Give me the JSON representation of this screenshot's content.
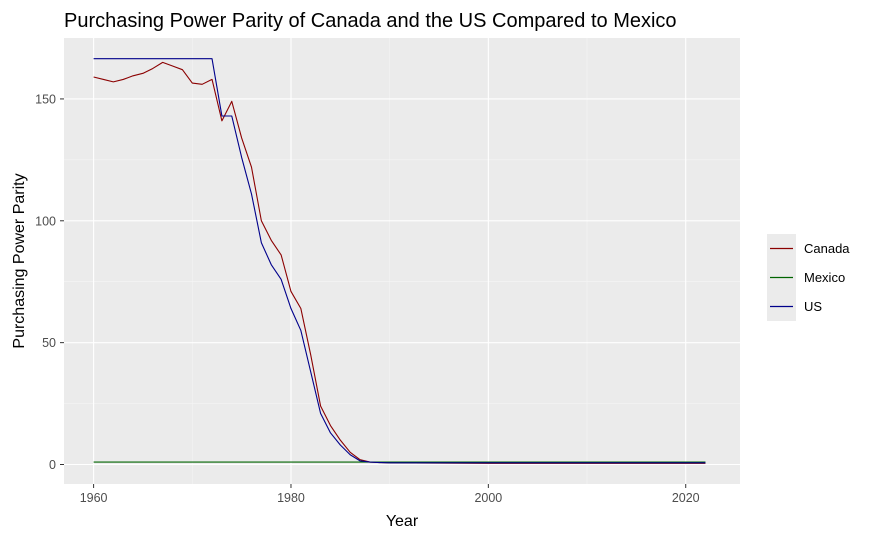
{
  "chart_data": {
    "type": "line",
    "title": "Purchasing Power Parity of Canada and the US Compared to Mexico",
    "xlabel": "Year",
    "ylabel": "Purchasing Power Parity",
    "xlim": [
      1957,
      2025.5
    ],
    "ylim": [
      -8,
      175
    ],
    "x_ticks": [
      1960,
      1980,
      2000,
      2020
    ],
    "y_ticks": [
      0,
      50,
      100,
      150
    ],
    "grid": true,
    "legend_position": "right",
    "series": [
      {
        "name": "Canada",
        "color": "#8b0000",
        "x": [
          1960,
          1961,
          1962,
          1963,
          1964,
          1965,
          1966,
          1967,
          1968,
          1969,
          1970,
          1971,
          1972,
          1973,
          1974,
          1975,
          1976,
          1977,
          1978,
          1979,
          1980,
          1981,
          1982,
          1983,
          1984,
          1985,
          1986,
          1987,
          1988,
          1989,
          1990,
          1995,
          2000,
          2010,
          2022
        ],
        "values": [
          159,
          158,
          157,
          158,
          159.5,
          160.5,
          162.5,
          165,
          163.5,
          162,
          156.5,
          156,
          158,
          141,
          149,
          134,
          122,
          100,
          92,
          86,
          71,
          64,
          45,
          24,
          16,
          10,
          5,
          2,
          1,
          0.8,
          0.7,
          0.6,
          0.5,
          0.5,
          0.5
        ]
      },
      {
        "name": "Mexico",
        "color": "#006400",
        "x": [
          1960,
          2022
        ],
        "values": [
          1,
          1
        ]
      },
      {
        "name": "US",
        "color": "#00008b",
        "x": [
          1960,
          1972,
          1973,
          1974,
          1975,
          1976,
          1977,
          1978,
          1979,
          1980,
          1981,
          1982,
          1983,
          1984,
          1985,
          1986,
          1987,
          1988,
          1989,
          1990,
          2000,
          2010,
          2022
        ],
        "values": [
          166.5,
          166.5,
          143,
          143,
          126,
          111,
          91,
          82,
          76,
          64,
          55,
          38,
          21,
          13,
          8,
          4,
          1.5,
          1,
          0.8,
          0.7,
          0.7,
          0.7,
          0.7
        ]
      }
    ]
  }
}
